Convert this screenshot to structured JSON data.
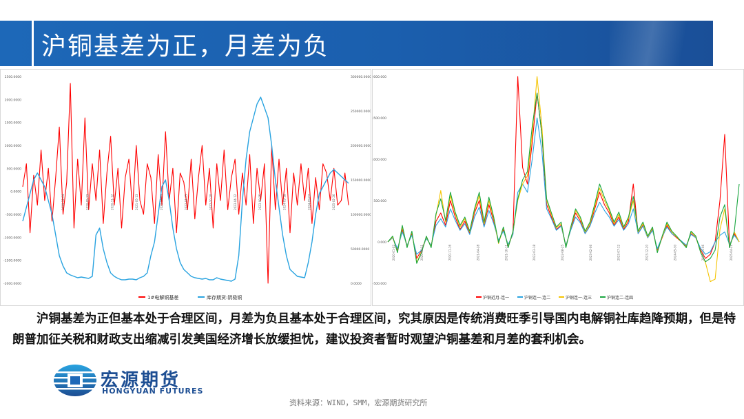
{
  "header": {
    "title": "沪铜基差为正，月差为负"
  },
  "body": {
    "text": "沪铜基差为正但基本处于合理区间，月差为负且基本处于合理区间，究其原因是传统消费旺季引导国内电解铜社库趋降预期，但是特朗普加征关税和财政支出缩减引发美国经济增长放缓担忧，建议投资者暂时观望沪铜基差和月差的套利机会。"
  },
  "logo": {
    "name_cn": "宏源期货",
    "name_en": "HONGYUAN FUTURES",
    "logo_icon": "hongyuan-logo-icon"
  },
  "source": "资料来源：WIND，SMM，宏源期货研究所",
  "colors": {
    "title_bar": "#1d68b8",
    "red": "#ff0000",
    "blue": "#29a3e0",
    "yellow": "#f5c400",
    "green": "#1aa640",
    "brand": "#1d4e93"
  },
  "chart_data": [
    {
      "type": "line",
      "y_left": {
        "ticks": [
          "2500.0000",
          "2000.0000",
          "1500.0000",
          "1000.0000",
          "500.0000",
          "0.0000",
          "-500.0000",
          "-1000.0000",
          "-1500.0000",
          "-2000.0000"
        ],
        "range": [
          -2000,
          2500
        ]
      },
      "y_right": {
        "ticks": [
          "300000.0000",
          "250000.0000",
          "200000.0000",
          "150000.0000",
          "100000.0000",
          "50000.0000",
          "0.0000"
        ],
        "range": [
          0,
          300000
        ]
      },
      "x_ticks": [
        "2019-12-04",
        "2020-05-22",
        "2020-11-12",
        "2021-05-13",
        "2021-11-03",
        "2022-04-25",
        "2022-10-20",
        "2023-04-12",
        "2023-09-25",
        "2024-03-18",
        "2024-09-02",
        "2025-02-26"
      ],
      "series": [
        {
          "name": "1#电解铜基差",
          "axis": "left",
          "color": "#ff0000",
          "values": [
            100,
            600,
            -900,
            350,
            -300,
            900,
            -200,
            500,
            -650,
            300,
            1400,
            -500,
            200,
            2350,
            -800,
            700,
            -300,
            1600,
            -400,
            600,
            -200,
            900,
            -700,
            400,
            1200,
            -300,
            500,
            -800,
            300,
            700,
            -400,
            1000,
            -200,
            -500,
            600,
            300,
            -700,
            800,
            -300,
            1300,
            -200,
            500,
            -900,
            400,
            200,
            -400,
            700,
            -600,
            300,
            1000,
            -300,
            500,
            -800,
            600,
            -200,
            900,
            -400,
            300,
            700,
            -500,
            400,
            -300,
            800,
            -700,
            500,
            -200,
            600,
            -2000,
            1000,
            -400,
            700,
            -300,
            500,
            -900,
            400,
            -300,
            600,
            -200,
            500,
            -700,
            300,
            -400,
            600,
            400,
            -200,
            500,
            -300,
            -200,
            400,
            -300
          ]
        },
        {
          "name": "库存期货:阴极铜",
          "axis": "right",
          "color": "#29a3e0",
          "values": [
            90000,
            110000,
            130000,
            150000,
            160000,
            150000,
            140000,
            120000,
            100000,
            70000,
            40000,
            25000,
            15000,
            12000,
            10000,
            8000,
            9000,
            8000,
            7000,
            10000,
            70000,
            80000,
            50000,
            30000,
            15000,
            10000,
            7000,
            5000,
            5000,
            6000,
            6000,
            5000,
            8000,
            10000,
            15000,
            40000,
            60000,
            100000,
            140000,
            150000,
            120000,
            80000,
            50000,
            30000,
            20000,
            15000,
            10000,
            8000,
            7000,
            6000,
            7000,
            5000,
            5000,
            8000,
            6000,
            5000,
            4000,
            3000,
            6000,
            40000,
            120000,
            180000,
            220000,
            240000,
            260000,
            270000,
            255000,
            240000,
            200000,
            150000,
            110000,
            70000,
            40000,
            20000,
            15000,
            10000,
            9000,
            8000,
            30000,
            60000,
            100000,
            130000,
            140000,
            150000,
            160000,
            165000,
            160000,
            155000,
            150000,
            145000
          ]
        }
      ]
    },
    {
      "type": "line",
      "y_axis": {
        "ticks": [
          "2000.000",
          "1500.000",
          "1000.000",
          "500.000",
          "0.000",
          "-500.000"
        ],
        "range": [
          -500,
          2000
        ]
      },
      "x_ticks": [
        "2020-01-02",
        "2020-06-11",
        "2020-11-16",
        "2021-04-28",
        "2021-10-11",
        "2022-03-18",
        "2022-08-25",
        "2023-02-06",
        "2023-07-12",
        "2023-12-20",
        "2024-05-30",
        "2024-11-06",
        "2025-04-21"
      ],
      "series": [
        {
          "name": "沪铜近月-连一",
          "color": "#ff0000",
          "values": [
            0,
            50,
            -100,
            150,
            -50,
            100,
            -200,
            -100,
            50,
            -50,
            250,
            350,
            200,
            500,
            300,
            150,
            250,
            100,
            350,
            500,
            200,
            450,
            250,
            0,
            150,
            -50,
            100,
            2000,
            900,
            700,
            1200,
            1800,
            1300,
            450,
            300,
            150,
            200,
            -50,
            150,
            350,
            250,
            100,
            200,
            400,
            600,
            450,
            350,
            200,
            300,
            150,
            250,
            700,
            100,
            200,
            50,
            150,
            -100,
            50,
            200,
            100,
            50,
            0,
            -50,
            100,
            50,
            -100,
            -200,
            -150,
            0,
            500,
            1300,
            -50,
            100,
            0
          ]
        },
        {
          "name": "沪铜连一-连二",
          "color": "#29a3e0",
          "values": [
            0,
            50,
            -80,
            120,
            -40,
            80,
            -150,
            -100,
            40,
            -40,
            200,
            280,
            180,
            400,
            260,
            140,
            220,
            90,
            300,
            420,
            180,
            380,
            220,
            20,
            130,
            -30,
            90,
            600,
            700,
            600,
            1000,
            1500,
            1100,
            400,
            280,
            140,
            190,
            -40,
            140,
            300,
            230,
            100,
            190,
            350,
            480,
            380,
            300,
            190,
            270,
            140,
            220,
            400,
            100,
            190,
            50,
            140,
            -80,
            60,
            180,
            100,
            60,
            10,
            -40,
            90,
            50,
            -80,
            -150,
            -120,
            0,
            80,
            120,
            -30,
            80,
            0
          ]
        },
        {
          "name": "沪铜连一-连三",
          "color": "#f5c400",
          "values": [
            0,
            60,
            -120,
            180,
            -60,
            120,
            -250,
            -120,
            60,
            -60,
            320,
            620,
            240,
            560,
            340,
            180,
            280,
            120,
            380,
            560,
            220,
            500,
            280,
            -20,
            170,
            -60,
            120,
            500,
            700,
            800,
            1300,
            2000,
            1400,
            500,
            330,
            170,
            220,
            -60,
            170,
            380,
            280,
            120,
            220,
            430,
            650,
            500,
            380,
            220,
            330,
            170,
            280,
            500,
            120,
            220,
            60,
            170,
            -120,
            60,
            220,
            120,
            60,
            0,
            -60,
            120,
            60,
            -120,
            -250,
            -480,
            -450,
            150,
            400,
            -60,
            120,
            0
          ]
        },
        {
          "name": "沪铜连二-连四",
          "color": "#1aa640",
          "values": [
            0,
            70,
            -130,
            200,
            -70,
            130,
            -260,
            -130,
            70,
            -70,
            340,
            520,
            260,
            600,
            360,
            200,
            300,
            130,
            400,
            600,
            240,
            540,
            300,
            -10,
            180,
            -70,
            130,
            520,
            750,
            850,
            1400,
            1800,
            1300,
            520,
            350,
            180,
            240,
            -70,
            180,
            400,
            300,
            130,
            240,
            460,
            700,
            540,
            400,
            240,
            360,
            180,
            300,
            550,
            130,
            240,
            70,
            180,
            -130,
            70,
            240,
            130,
            70,
            0,
            -70,
            130,
            70,
            -130,
            -240,
            -200,
            -100,
            300,
            450,
            -70,
            130,
            700
          ]
        }
      ]
    }
  ]
}
